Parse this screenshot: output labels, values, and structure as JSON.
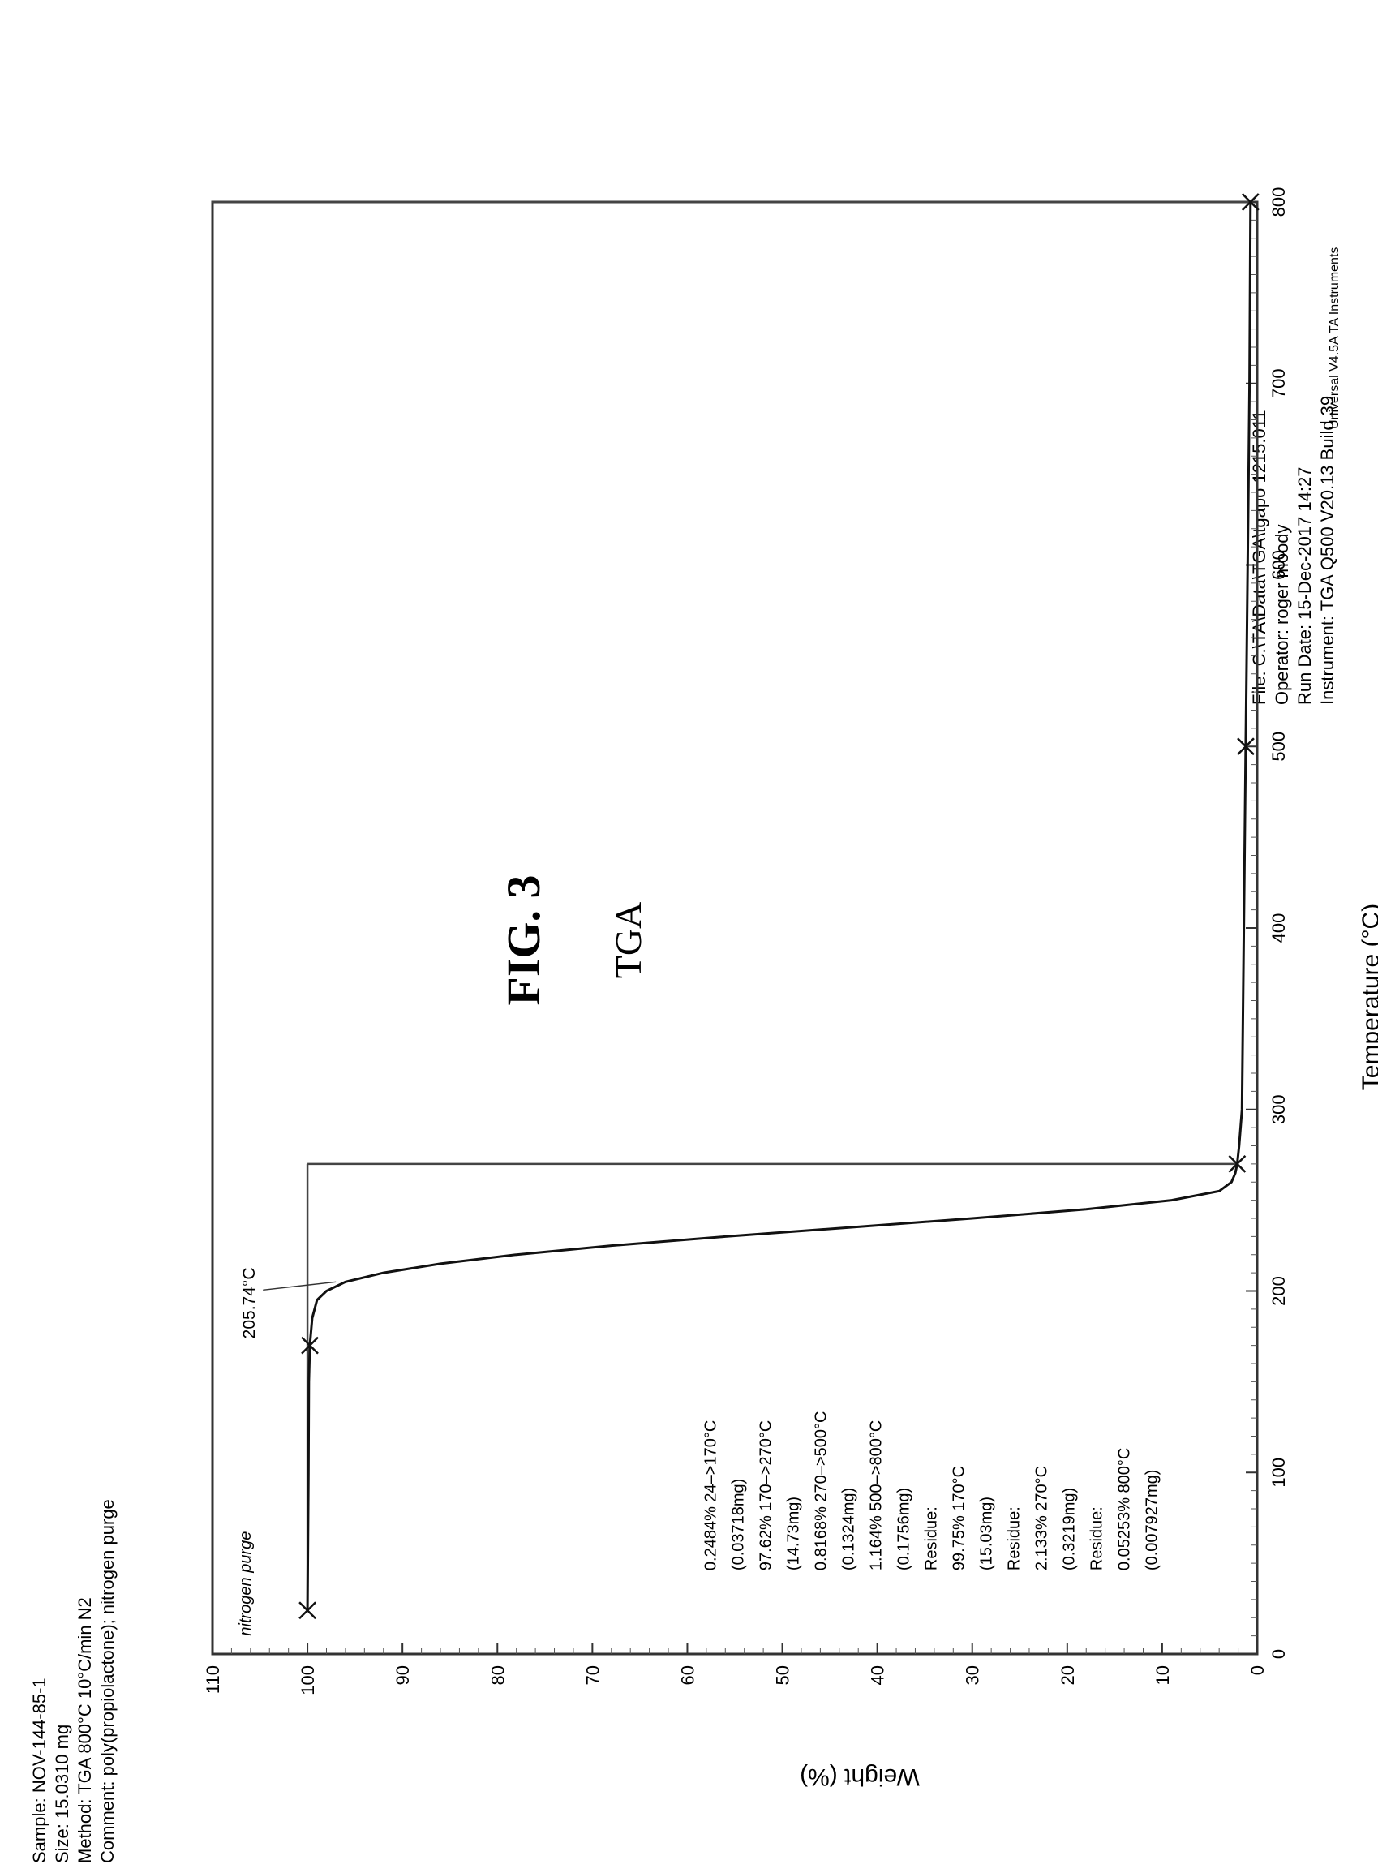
{
  "figure": {
    "label": "FIG. 3",
    "subtitle": "TGA"
  },
  "header_left": {
    "sample": "Sample: NOV-144-85-1",
    "size": "Size: 15.0310 mg",
    "method": "Method: TGA 800°C 10°C/min N2",
    "comment": "Comment: poly(propiolactone); nitrogen purge"
  },
  "header_right": {
    "file": "File: C:\\TA\\Data\\TGA\\tgapo 1215.011",
    "operator": "Operator: roger moody",
    "run_date": "Run Date: 15-Dec-2017 14:27",
    "instrument": "Instrument: TGA Q500 V20.13 Build 39"
  },
  "footer": {
    "software": "Universal V4.5A TA Instruments"
  },
  "chart_data": {
    "type": "line",
    "xlabel": "Temperature (°C)",
    "ylabel": "Weight (%)",
    "xlim": [
      0,
      800
    ],
    "ylim": [
      0,
      110
    ],
    "x_ticks": [
      0,
      100,
      200,
      300,
      400,
      500,
      600,
      700,
      800
    ],
    "y_ticks": [
      0,
      10,
      20,
      30,
      40,
      50,
      60,
      70,
      80,
      90,
      100,
      110
    ],
    "x_tick_labels": [
      "0",
      "100",
      "200",
      "300",
      "400",
      "500",
      "600",
      "700",
      "800"
    ],
    "y_tick_labels": [
      "0",
      "10",
      "20",
      "30",
      "40",
      "50",
      "60",
      "70",
      "80",
      "90",
      "100",
      "110"
    ],
    "grid": false,
    "series": [
      {
        "name": "",
        "x": [
          24,
          100,
          150,
          170,
          185,
          195,
          200,
          205,
          210,
          215,
          220,
          225,
          230,
          235,
          240,
          245,
          250,
          255,
          260,
          265,
          270,
          280,
          300,
          400,
          500,
          600,
          700,
          800
        ],
        "y": [
          100,
          99.9,
          99.85,
          99.75,
          99.5,
          99.0,
          98.0,
          96.0,
          92.0,
          86.0,
          78.0,
          68.0,
          56.0,
          43.0,
          30.0,
          18.0,
          9.0,
          4.0,
          2.7,
          2.3,
          2.1,
          1.9,
          1.6,
          1.4,
          1.2,
          1.0,
          0.8,
          0.7
        ]
      }
    ],
    "step_markers": [
      {
        "x": 24,
        "y": 100
      },
      {
        "x": 170,
        "y": 99.75
      },
      {
        "x": 270,
        "y": 2.1
      },
      {
        "x": 500,
        "y": 1.2
      },
      {
        "x": 800,
        "y": 0.7
      }
    ],
    "bracket_lines": [
      {
        "x": 270,
        "y_from": 100,
        "y_to": 2.1
      },
      {
        "x": 800,
        "y_from": 110,
        "y_to": 0.7
      }
    ],
    "annotations": {
      "purge": "nitrogen purge",
      "onset": "205.74°C",
      "onset_x": 205,
      "onset_y": 97,
      "steps": [
        "0.2484% 24–>170°C",
        "(0.03718mg)",
        "97.62% 170–>270°C",
        "(14.73mg)",
        "0.8168% 270–>500°C",
        "(0.1324mg)",
        "1.164% 500–>800°C",
        "(0.1756mg)",
        "Residue:",
        "99.75% 170°C",
        "(15.03mg)",
        "Residue:",
        "2.133% 270°C",
        "(0.3219mg)",
        "Residue:",
        "0.05253% 800°C",
        "(0.007927mg)"
      ]
    }
  }
}
